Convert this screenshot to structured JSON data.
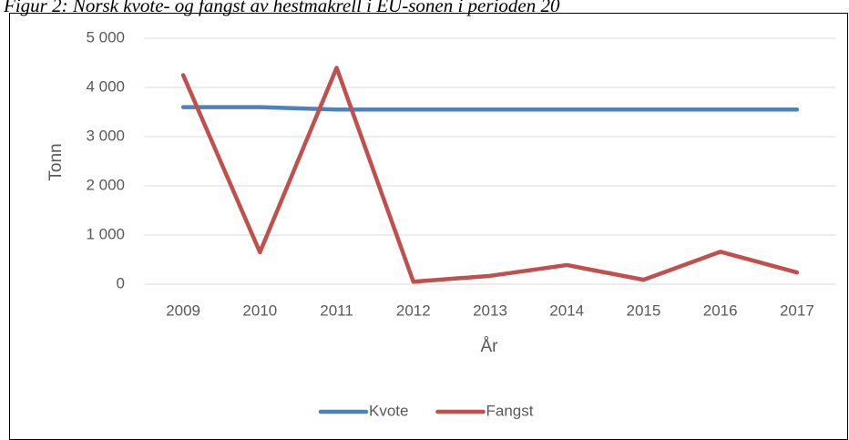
{
  "chart_data": {
    "type": "line",
    "title": "Figur 2: Norsk kvote- og fangst av hestmakrell i EU-sonen i perioden 20",
    "x_label": "År",
    "y_label": "Tonn",
    "categories": [
      "2009",
      "2010",
      "2011",
      "2012",
      "2013",
      "2014",
      "2015",
      "2016",
      "2017"
    ],
    "series": [
      {
        "name": "Kvote",
        "color": "#4f81bd",
        "values": [
          3600,
          3600,
          3550,
          3550,
          3550,
          3550,
          3550,
          3550,
          3550
        ]
      },
      {
        "name": "Fangst",
        "color": "#c0504d",
        "values": [
          4250,
          650,
          4400,
          50,
          170,
          390,
          90,
          660,
          240
        ]
      }
    ],
    "ylim": [
      0,
      5000
    ],
    "yticks": [
      0,
      {
        "value": 1000,
        "label": "1 000"
      },
      {
        "value": 2000,
        "label": "2 000"
      },
      {
        "value": 3000,
        "label": "3 000"
      },
      {
        "value": 4000,
        "label": "4 000"
      },
      {
        "value": 5000,
        "label": "5 000"
      }
    ],
    "grid": true,
    "legend": "bottom"
  }
}
